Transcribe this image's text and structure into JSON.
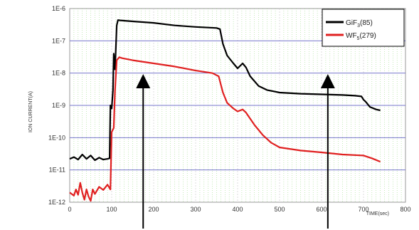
{
  "chart_data": {
    "type": "line",
    "title": "",
    "xlabel": "TIME(sec)",
    "ylabel": "ION CURRENT(A)",
    "xlim": [
      0,
      800
    ],
    "ylim": [
      1e-12,
      1e-06
    ],
    "y_scale": "log",
    "x_ticks": [
      "0",
      "100",
      "200",
      "300",
      "400",
      "500",
      "600",
      "700",
      "800"
    ],
    "y_ticks": [
      "1E-12",
      "1E-11",
      "1E-10",
      "1E-9",
      "1E-8",
      "1E-7",
      "1E-6"
    ],
    "grid": true,
    "legend_position": "top-right",
    "legend": [
      {
        "label": "GiF",
        "sub": "3",
        "suffix": "(85)"
      },
      {
        "label": "WF",
        "sub": "5",
        "suffix": "(279)"
      }
    ],
    "annotations": [
      {
        "type": "arrow",
        "x": 175,
        "direction": "up"
      },
      {
        "type": "arrow",
        "x": 615,
        "direction": "up"
      }
    ],
    "series": [
      {
        "name": "GiF3(85)",
        "color": "#000000",
        "points": [
          [
            0,
            2.2e-11
          ],
          [
            10,
            2.5e-11
          ],
          [
            20,
            2.1e-11
          ],
          [
            30,
            3e-11
          ],
          [
            40,
            2.2e-11
          ],
          [
            50,
            2.8e-11
          ],
          [
            60,
            2e-11
          ],
          [
            70,
            2.4e-11
          ],
          [
            80,
            2.1e-11
          ],
          [
            90,
            2.2e-11
          ],
          [
            95,
            2.3e-11
          ],
          [
            97,
            1e-09
          ],
          [
            100,
            8e-10
          ],
          [
            103,
            3e-09
          ],
          [
            105,
            4e-08
          ],
          [
            108,
            1.3e-08
          ],
          [
            112,
            3e-07
          ],
          [
            115,
            4.4e-07
          ],
          [
            120,
            4.3e-07
          ],
          [
            150,
            4e-07
          ],
          [
            200,
            3.6e-07
          ],
          [
            250,
            3e-07
          ],
          [
            300,
            2.7e-07
          ],
          [
            350,
            2.5e-07
          ],
          [
            358,
            2.3e-07
          ],
          [
            365,
            8e-08
          ],
          [
            375,
            3.5e-08
          ],
          [
            390,
            2e-08
          ],
          [
            400,
            1.4e-08
          ],
          [
            412,
            2e-08
          ],
          [
            420,
            1.5e-08
          ],
          [
            430,
            8e-09
          ],
          [
            450,
            4e-09
          ],
          [
            470,
            3e-09
          ],
          [
            500,
            2.5e-09
          ],
          [
            550,
            2.3e-09
          ],
          [
            600,
            2.2e-09
          ],
          [
            650,
            2.1e-09
          ],
          [
            680,
            2e-09
          ],
          [
            695,
            1.9e-09
          ],
          [
            700,
            1.5e-09
          ],
          [
            705,
            1.3e-09
          ],
          [
            715,
            9e-10
          ],
          [
            730,
            7.5e-10
          ],
          [
            740,
            7e-10
          ]
        ]
      },
      {
        "name": "WF5(279)",
        "color": "#e02020",
        "points": [
          [
            0,
            2e-12
          ],
          [
            10,
            1.6e-12
          ],
          [
            15,
            2.5e-12
          ],
          [
            20,
            1.7e-12
          ],
          [
            25,
            4e-12
          ],
          [
            30,
            2e-12
          ],
          [
            35,
            1.2e-12
          ],
          [
            40,
            2.5e-12
          ],
          [
            45,
            1.5e-12
          ],
          [
            50,
            1.1e-12
          ],
          [
            55,
            2.5e-12
          ],
          [
            60,
            1.8e-12
          ],
          [
            70,
            3e-12
          ],
          [
            80,
            2.4e-12
          ],
          [
            90,
            3.5e-12
          ],
          [
            97,
            2.5e-12
          ],
          [
            100,
            1.5e-10
          ],
          [
            105,
            2e-10
          ],
          [
            108,
            3e-09
          ],
          [
            112,
            2.5e-08
          ],
          [
            118,
            3.1e-08
          ],
          [
            125,
            2.9e-08
          ],
          [
            150,
            2.5e-08
          ],
          [
            200,
            2e-08
          ],
          [
            250,
            1.6e-08
          ],
          [
            300,
            1.2e-08
          ],
          [
            340,
            1e-08
          ],
          [
            355,
            8e-09
          ],
          [
            365,
            2.5e-09
          ],
          [
            375,
            1.2e-09
          ],
          [
            390,
            8e-10
          ],
          [
            400,
            6.5e-10
          ],
          [
            412,
            7.5e-10
          ],
          [
            420,
            6e-10
          ],
          [
            440,
            2.5e-10
          ],
          [
            460,
            1.2e-10
          ],
          [
            480,
            7e-11
          ],
          [
            500,
            5e-11
          ],
          [
            550,
            4e-11
          ],
          [
            600,
            3.5e-11
          ],
          [
            650,
            3e-11
          ],
          [
            700,
            2.8e-11
          ],
          [
            720,
            2.3e-11
          ],
          [
            740,
            1.8e-11
          ]
        ]
      }
    ]
  }
}
